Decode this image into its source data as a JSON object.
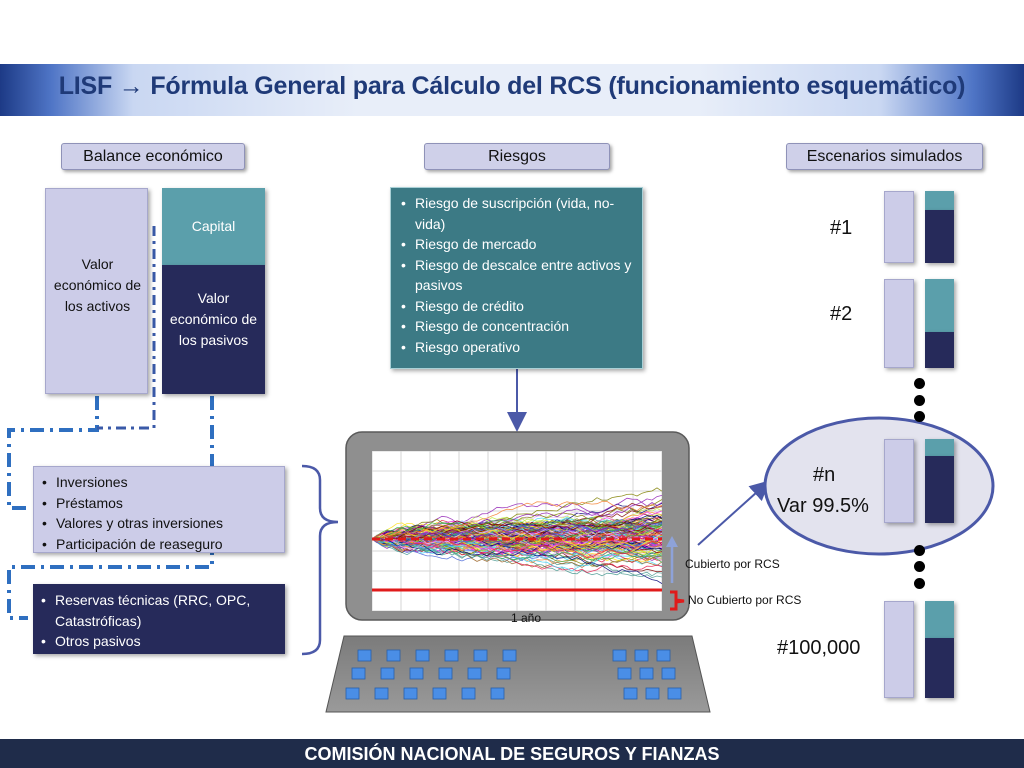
{
  "title": "LISF → Fórmula General para Cálculo del RCS (funcionamiento esquemático)",
  "headers": {
    "balance": "Balance económico",
    "risks": "Riesgos",
    "scenarios": "Escenarios simulados"
  },
  "balance": {
    "assets_label": "Valor económico de los activos",
    "capital_label": "Capital",
    "liabilities_label": "Valor económico de los pasivos"
  },
  "risks_list": [
    "Riesgo de suscripción (vida, no-vida)",
    "Riesgo de mercado",
    "Riesgo de descalce entre activos y pasivos",
    "Riesgo de crédito",
    "Riesgo de concentración",
    "Riesgo operativo"
  ],
  "assets_breakdown": [
    "Inversiones",
    "Préstamos",
    "Valores y otras inversiones",
    "Participación de reaseguro"
  ],
  "liabilities_breakdown": [
    "Reservas técnicas (RRC, OPC, Catastróficas)",
    "Otros pasivos"
  ],
  "scenarios": [
    {
      "label": "#1",
      "capital_fraction": 0.27
    },
    {
      "label": "#2",
      "capital_fraction": 0.6
    },
    {
      "label": "#n",
      "sublabel": "Var 99.5%",
      "capital_fraction": 0.2
    },
    {
      "label": "#100,000",
      "capital_fraction": 0.38
    }
  ],
  "simulation": {
    "x_label": "1 año",
    "covered_label": "Cubierto por RCS",
    "not_covered_label": "No Cubierto por RCS"
  },
  "colors": {
    "title_text": "#1f3a78",
    "lavender": "#cccce8",
    "teal": "#5b9fab",
    "navy": "#262a5a",
    "connector_blue": "#2f6fc0",
    "arrow_blue": "#4b59a8",
    "red_line": "#e01b1b"
  },
  "footer": "COMISIÓN NACIONAL DE SEGUROS Y FIANZAS"
}
